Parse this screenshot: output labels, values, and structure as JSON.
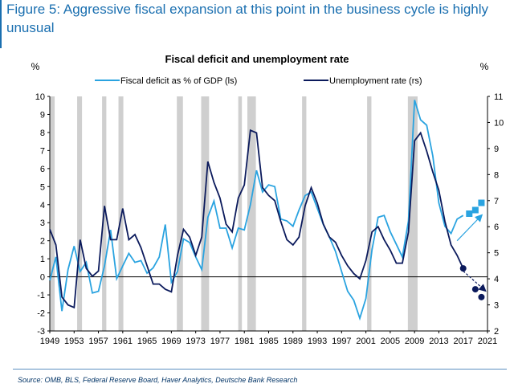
{
  "figure_title": "Figure 5: Aggressive fiscal expansion at this point in the business cycle is highly unusual",
  "source": "Source: OMB, BLS, Federal Reserve Board, Haver Analytics, Deutsche Bank Research",
  "colors": {
    "deficit": "#2aa3e0",
    "unemployment": "#0b1a5c",
    "recession": "#cfcfcf",
    "title": "#1a6fb0"
  },
  "chart_data": {
    "type": "line",
    "title": "Fiscal deficit and unemployment rate",
    "ylabel_left": "%",
    "ylabel_right": "%",
    "ylim_left": [
      -3,
      10
    ],
    "ylim_right": [
      2,
      11
    ],
    "xlim": [
      1949,
      2021
    ],
    "x_ticks": [
      "1949",
      "1953",
      "1957",
      "1961",
      "1965",
      "1969",
      "1973",
      "1977",
      "1981",
      "1985",
      "1989",
      "1993",
      "1997",
      "2001",
      "2005",
      "2009",
      "2013",
      "2017",
      "2021"
    ],
    "y_ticks_left": [
      "-3",
      "-2",
      "-1",
      "0",
      "1",
      "2",
      "3",
      "4",
      "5",
      "6",
      "7",
      "8",
      "9",
      "10"
    ],
    "y_ticks_right": [
      "2",
      "3",
      "4",
      "5",
      "6",
      "7",
      "8",
      "9",
      "10",
      "11"
    ],
    "legend": [
      {
        "name": "Fiscal deficit as % of GDP (ls)",
        "axis": "left"
      },
      {
        "name": "Unemployment rate (rs)",
        "axis": "right"
      }
    ],
    "recessions": [
      [
        1949.0,
        1949.8
      ],
      [
        1953.5,
        1954.3
      ],
      [
        1957.6,
        1958.3
      ],
      [
        1960.3,
        1961.1
      ],
      [
        1969.9,
        1970.9
      ],
      [
        1973.9,
        1975.2
      ],
      [
        1980.0,
        1980.6
      ],
      [
        1981.5,
        1982.9
      ],
      [
        1990.5,
        1991.2
      ],
      [
        2001.2,
        2001.9
      ],
      [
        2007.9,
        2009.5
      ]
    ],
    "series": [
      {
        "name": "Fiscal deficit as % of GDP (ls)",
        "axis": "left",
        "x": [
          1949,
          1950,
          1951,
          1952,
          1953,
          1954,
          1955,
          1956,
          1957,
          1958,
          1959,
          1960,
          1961,
          1962,
          1963,
          1964,
          1965,
          1966,
          1967,
          1968,
          1969,
          1970,
          1971,
          1972,
          1973,
          1974,
          1975,
          1976,
          1977,
          1978,
          1979,
          1980,
          1981,
          1982,
          1983,
          1984,
          1985,
          1986,
          1987,
          1988,
          1989,
          1990,
          1991,
          1992,
          1993,
          1994,
          1995,
          1996,
          1997,
          1998,
          1999,
          2000,
          2001,
          2002,
          2003,
          2004,
          2005,
          2006,
          2007,
          2008,
          2009,
          2010,
          2011,
          2012,
          2013,
          2014,
          2015,
          2016,
          2017
        ],
        "values": [
          -0.2,
          1.1,
          -1.9,
          0.4,
          1.7,
          0.3,
          0.8,
          -0.9,
          -0.8,
          0.6,
          2.6,
          -0.1,
          0.6,
          1.3,
          0.8,
          0.9,
          0.2,
          0.5,
          1.1,
          2.9,
          -0.3,
          0.3,
          2.1,
          1.9,
          1.1,
          0.4,
          3.3,
          4.2,
          2.7,
          2.7,
          1.6,
          2.7,
          2.6,
          4.0,
          5.9,
          4.7,
          5.1,
          5.0,
          3.2,
          3.1,
          2.8,
          3.7,
          4.5,
          4.7,
          3.8,
          2.9,
          2.2,
          1.4,
          0.3,
          -0.8,
          -1.3,
          -2.3,
          -1.2,
          1.5,
          3.3,
          3.4,
          2.5,
          1.8,
          1.1,
          3.1,
          9.8,
          8.7,
          8.4,
          6.7,
          4.1,
          2.8,
          2.4,
          3.2,
          3.4
        ]
      },
      {
        "name": "Unemployment rate (rs)",
        "axis": "right",
        "x": [
          1949,
          1950,
          1951,
          1952,
          1953,
          1954,
          1955,
          1956,
          1957,
          1958,
          1959,
          1960,
          1961,
          1962,
          1963,
          1964,
          1965,
          1966,
          1967,
          1968,
          1969,
          1970,
          1971,
          1972,
          1973,
          1974,
          1975,
          1976,
          1977,
          1978,
          1979,
          1980,
          1981,
          1982,
          1983,
          1984,
          1985,
          1986,
          1987,
          1988,
          1989,
          1990,
          1991,
          1992,
          1993,
          1994,
          1995,
          1996,
          1997,
          1998,
          1999,
          2000,
          2001,
          2002,
          2003,
          2004,
          2005,
          2006,
          2007,
          2008,
          2009,
          2010,
          2011,
          2012,
          2013,
          2014,
          2015,
          2016,
          2017
        ],
        "values": [
          5.9,
          5.3,
          3.3,
          3.0,
          2.9,
          5.5,
          4.4,
          4.1,
          4.3,
          6.8,
          5.5,
          5.5,
          6.7,
          5.5,
          5.7,
          5.2,
          4.5,
          3.8,
          3.8,
          3.6,
          3.5,
          4.9,
          5.9,
          5.6,
          4.9,
          5.6,
          8.5,
          7.7,
          7.1,
          6.1,
          5.8,
          7.1,
          7.6,
          9.7,
          9.6,
          7.5,
          7.2,
          7.0,
          6.2,
          5.5,
          5.3,
          5.6,
          6.8,
          7.5,
          6.9,
          6.1,
          5.6,
          5.4,
          4.9,
          4.5,
          4.2,
          4.0,
          4.7,
          5.8,
          6.0,
          5.5,
          5.1,
          4.6,
          4.6,
          5.8,
          9.3,
          9.6,
          8.9,
          8.1,
          7.4,
          6.2,
          5.3,
          4.9,
          4.4
        ]
      },
      {
        "name": "Fiscal deficit projection",
        "axis": "left",
        "style": "markers",
        "x": [
          2018,
          2019,
          2020
        ],
        "values": [
          3.5,
          3.7,
          4.1
        ]
      },
      {
        "name": "Unemployment projection",
        "axis": "right",
        "style": "markers",
        "x": [
          2017,
          2019,
          2020
        ],
        "values": [
          4.4,
          3.6,
          3.3
        ]
      }
    ],
    "annotations": [
      {
        "type": "arrow",
        "series": "deficit",
        "x0": 2016,
        "y0": 2.0,
        "x1": 2020,
        "y1": 3.4,
        "axis": "left"
      },
      {
        "type": "arrow",
        "series": "unemployment",
        "x0": 2017,
        "y0": 4.3,
        "x1": 2020.6,
        "y1": 3.55,
        "axis": "right"
      }
    ]
  }
}
